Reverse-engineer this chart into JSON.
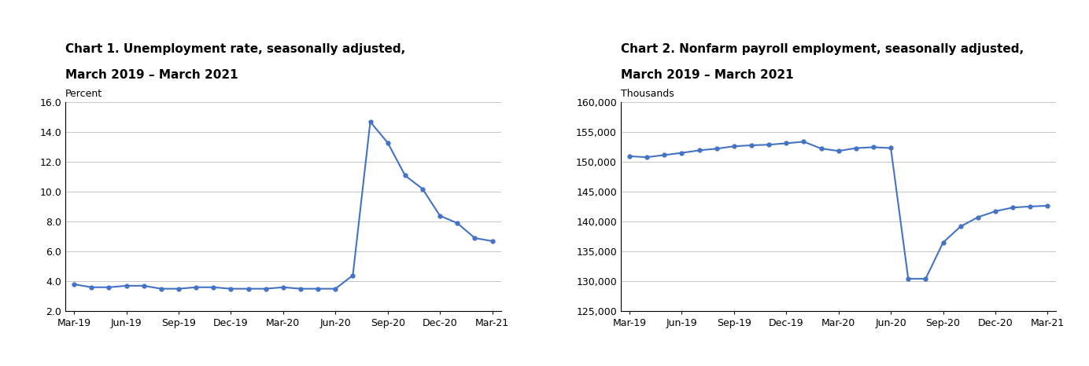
{
  "chart1_title_line1": "Chart 1. Unemployment rate, seasonally adjusted,",
  "chart1_title_line2": "March 2019 – March 2021",
  "chart1_ylabel": "Percent",
  "chart1_ylim": [
    2.0,
    16.0
  ],
  "chart1_yticks": [
    2.0,
    4.0,
    6.0,
    8.0,
    10.0,
    12.0,
    14.0,
    16.0
  ],
  "chart1_data": [
    3.8,
    3.6,
    3.6,
    3.7,
    3.7,
    3.5,
    3.5,
    3.6,
    3.6,
    3.5,
    3.5,
    3.5,
    3.6,
    3.5,
    3.5,
    3.5,
    4.4,
    14.7,
    13.3,
    11.1,
    10.2,
    8.4,
    7.9,
    6.9,
    6.7
  ],
  "chart2_title_line1": "Chart 2. Nonfarm payroll employment, seasonally adjusted,",
  "chart2_title_line2": "March 2019 – March 2021",
  "chart2_ylabel": "Thousands",
  "chart2_ylim": [
    125000,
    160000
  ],
  "chart2_yticks": [
    125000,
    130000,
    135000,
    140000,
    145000,
    150000,
    155000,
    160000
  ],
  "chart2_data": [
    150983,
    150814,
    151182,
    151548,
    151971,
    152249,
    152649,
    152819,
    152917,
    153157,
    153422,
    152273,
    151866,
    152344,
    152494,
    152356,
    130427,
    130429,
    136510,
    139186,
    140756,
    141747,
    142378,
    142553,
    142674
  ],
  "xtick_labels": [
    "Mar-19",
    "Jun-19",
    "Sep-19",
    "Dec-19",
    "Mar-20",
    "Jun-20",
    "Sep-20",
    "Dec-20",
    "Mar-21"
  ],
  "line_color": "#4472C4",
  "marker": "o",
  "marker_size": 3.5,
  "line_width": 1.5,
  "bg_color": "#ffffff",
  "grid_color": "#bbbbbb",
  "title_fontsize": 11,
  "label_fontsize": 9,
  "tick_fontsize": 9
}
